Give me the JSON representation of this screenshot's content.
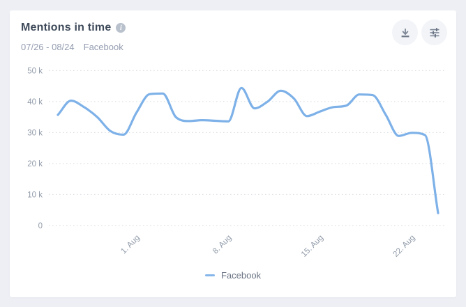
{
  "card": {
    "title": "Mentions in time",
    "date_range": "07/26 - 08/24",
    "source_label": "Facebook"
  },
  "toolbar": {
    "download_icon": "download-icon",
    "filters_icon": "sliders-icon"
  },
  "colors": {
    "page_bg": "#edeff4",
    "card_bg": "#ffffff",
    "line": "#7db1e8",
    "legend_dash": "#85b6e9",
    "grid": "#d8dbe1",
    "tick_text": "#909aa8",
    "title_text": "#3e4a5a",
    "subtitle_text": "#949db0"
  },
  "chart_data": {
    "type": "line",
    "title": "Mentions in time",
    "xlabel": "",
    "ylabel": "",
    "ylim": [
      0,
      50000
    ],
    "grid": "horizontal-dotted",
    "legend_position": "bottom",
    "y_ticks": [
      {
        "value": 0,
        "label": "0"
      },
      {
        "value": 10000,
        "label": "10 k"
      },
      {
        "value": 20000,
        "label": "20 k"
      },
      {
        "value": 30000,
        "label": "30 k"
      },
      {
        "value": 40000,
        "label": "40 k"
      },
      {
        "value": 50000,
        "label": "50 k"
      }
    ],
    "x": [
      "07/26",
      "07/27",
      "07/28",
      "07/29",
      "07/30",
      "07/31",
      "08/01",
      "08/02",
      "08/03",
      "08/04",
      "08/05",
      "08/06",
      "08/07",
      "08/08",
      "08/09",
      "08/10",
      "08/11",
      "08/12",
      "08/13",
      "08/14",
      "08/15",
      "08/16",
      "08/17",
      "08/18",
      "08/19",
      "08/20",
      "08/21",
      "08/22",
      "08/23",
      "08/24"
    ],
    "x_tick_labels": [
      {
        "index": 6,
        "label": "1. Aug"
      },
      {
        "index": 13,
        "label": "8. Aug"
      },
      {
        "index": 20,
        "label": "15. Aug"
      },
      {
        "index": 27,
        "label": "22. Aug"
      }
    ],
    "series": [
      {
        "name": "Facebook",
        "color": "#7db1e8",
        "values": [
          35700,
          40300,
          38200,
          35000,
          30500,
          29300,
          36500,
          42400,
          42600,
          35000,
          33700,
          34000,
          33800,
          33600,
          44400,
          37800,
          40000,
          43500,
          41000,
          35300,
          36800,
          38200,
          38700,
          42300,
          42100,
          35800,
          28900,
          29900,
          29200,
          4000
        ]
      }
    ]
  },
  "legend": {
    "items": [
      {
        "label": "Facebook",
        "color": "#85b6e9"
      }
    ]
  }
}
